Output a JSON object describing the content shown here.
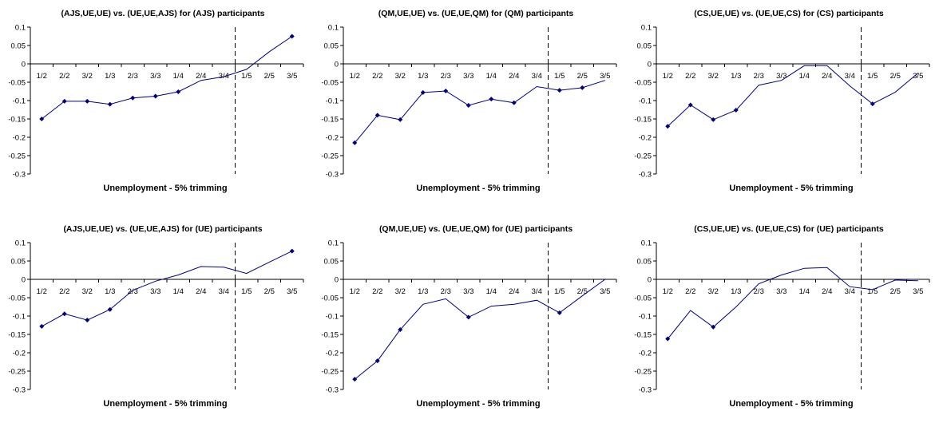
{
  "chart_data": [
    {
      "type": "line",
      "title": "(AJS,UE,UE) vs. (UE,UE,AJS) for (AJS) participants",
      "xlabel": "Unemployment - 5% trimming",
      "categories": [
        "1/2",
        "2/2",
        "3/2",
        "1/3",
        "2/3",
        "3/3",
        "1/4",
        "2/4",
        "3/4",
        "1/5",
        "2/5",
        "3/5"
      ],
      "yticks": [
        "0.1",
        "0.05",
        "0",
        "-0.05",
        "-0.1",
        "-0.15",
        "-0.2",
        "-0.25",
        "-0.3"
      ],
      "ylim": [
        -0.3,
        0.1
      ],
      "values": [
        -0.15,
        -0.102,
        -0.102,
        -0.11,
        -0.093,
        -0.088,
        -0.076,
        -0.045,
        -0.035,
        -0.015,
        0.033,
        0.075
      ],
      "markers": [
        0,
        1,
        2,
        3,
        4,
        5,
        6,
        11
      ],
      "vline_between": [
        8,
        9
      ],
      "color": "#000080"
    },
    {
      "type": "line",
      "title": "(QM,UE,UE) vs. (UE,UE,QM) for (QM) participants",
      "xlabel": "Unemployment - 5% trimming",
      "categories": [
        "1/2",
        "2/2",
        "3/2",
        "1/3",
        "2/3",
        "3/3",
        "1/4",
        "2/4",
        "3/4",
        "1/5",
        "2/5",
        "3/5"
      ],
      "yticks": [
        "0.1",
        "0.05",
        "0",
        "-0.05",
        "-0.1",
        "-0.15",
        "-0.2",
        "-0.25",
        "-0.3"
      ],
      "ylim": [
        -0.3,
        0.1
      ],
      "values": [
        -0.215,
        -0.14,
        -0.152,
        -0.078,
        -0.074,
        -0.113,
        -0.096,
        -0.106,
        -0.062,
        -0.072,
        -0.065,
        -0.045
      ],
      "markers": [
        0,
        1,
        2,
        3,
        4,
        5,
        6,
        7,
        9,
        10
      ],
      "vline_between": [
        8,
        9
      ],
      "color": "#000080"
    },
    {
      "type": "line",
      "title": "(CS,UE,UE) vs. (UE,UE,CS) for (CS) participants",
      "xlabel": "Unemployment - 5% trimming",
      "categories": [
        "1/2",
        "2/2",
        "3/2",
        "1/3",
        "2/3",
        "3/3",
        "1/4",
        "2/4",
        "3/4",
        "1/5",
        "2/5",
        "3/5"
      ],
      "yticks": [
        "0.1",
        "0.05",
        "0",
        "-0.05",
        "-0.1",
        "-0.15",
        "-0.2",
        "-0.25",
        "-0.3"
      ],
      "ylim": [
        -0.3,
        0.1
      ],
      "values": [
        -0.17,
        -0.112,
        -0.152,
        -0.126,
        -0.058,
        -0.045,
        -0.005,
        -0.005,
        -0.06,
        -0.109,
        -0.077,
        -0.025
      ],
      "markers": [
        0,
        1,
        2,
        3,
        9
      ],
      "vline_between": [
        8,
        9
      ],
      "color": "#000080"
    },
    {
      "type": "line",
      "title": "(AJS,UE,UE) vs. (UE,UE,AJS) for (UE) participants",
      "xlabel": "Unemployment - 5% trimming",
      "categories": [
        "1/2",
        "2/2",
        "3/2",
        "1/3",
        "2/3",
        "3/3",
        "1/4",
        "2/4",
        "3/4",
        "1/5",
        "2/5",
        "3/5"
      ],
      "yticks": [
        "0.1",
        "0.05",
        "0",
        "-0.05",
        "-0.1",
        "-0.15",
        "-0.2",
        "-0.25",
        "-0.3"
      ],
      "ylim": [
        -0.3,
        0.1
      ],
      "values": [
        -0.128,
        -0.094,
        -0.111,
        -0.082,
        -0.03,
        -0.005,
        0.012,
        0.035,
        0.033,
        0.016,
        0.047,
        0.077
      ],
      "markers": [
        0,
        1,
        2,
        3,
        11
      ],
      "vline_between": [
        8,
        9
      ],
      "color": "#000080"
    },
    {
      "type": "line",
      "title": "(QM,UE,UE) vs. (UE,UE,QM) for (UE) participants",
      "xlabel": "Unemployment - 5% trimming",
      "categories": [
        "1/2",
        "2/2",
        "3/2",
        "1/3",
        "2/3",
        "3/3",
        "1/4",
        "2/4",
        "3/4",
        "1/5",
        "2/5",
        "3/5"
      ],
      "yticks": [
        "0.1",
        "0.05",
        "0",
        "-0.05",
        "-0.1",
        "-0.15",
        "-0.2",
        "-0.25",
        "-0.3"
      ],
      "ylim": [
        -0.3,
        0.1
      ],
      "values": [
        -0.272,
        -0.222,
        -0.137,
        -0.068,
        -0.053,
        -0.103,
        -0.073,
        -0.068,
        -0.057,
        -0.091,
        -0.045,
        0.0
      ],
      "markers": [
        0,
        1,
        2,
        5,
        9
      ],
      "vline_between": [
        8,
        9
      ],
      "color": "#000080"
    },
    {
      "type": "line",
      "title": "(CS,UE,UE) vs. (UE,UE,CS) for (UE) participants",
      "xlabel": "Unemployment - 5% trimming",
      "categories": [
        "1/2",
        "2/2",
        "3/2",
        "1/3",
        "2/3",
        "3/3",
        "1/4",
        "2/4",
        "3/4",
        "1/5",
        "2/5",
        "3/5"
      ],
      "yticks": [
        "0.1",
        "0.05",
        "0",
        "-0.05",
        "-0.1",
        "-0.15",
        "-0.2",
        "-0.25",
        "-0.3"
      ],
      "ylim": [
        -0.3,
        0.1
      ],
      "values": [
        -0.162,
        -0.085,
        -0.13,
        -0.075,
        -0.012,
        0.012,
        0.03,
        0.032,
        -0.02,
        -0.028,
        -0.002,
        -0.004
      ],
      "markers": [
        0,
        2
      ],
      "vline_between": [
        8,
        9
      ],
      "color": "#000080"
    }
  ]
}
